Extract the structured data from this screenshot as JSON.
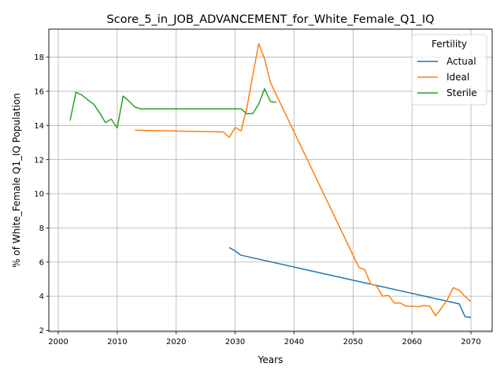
{
  "chart_data": {
    "type": "line",
    "title": "Score_5_in_JOB_ADVANCEMENT_for_White_Female_Q1_IQ",
    "xlabel": "Years",
    "ylabel": "% of White_Female Q1_IQ Population",
    "xlim": [
      1998.4,
      2073.6
    ],
    "ylim": [
      1.93,
      19.64
    ],
    "xticks": [
      2000,
      2010,
      2020,
      2030,
      2040,
      2050,
      2060,
      2070
    ],
    "yticks": [
      2,
      4,
      6,
      8,
      10,
      12,
      14,
      16,
      18
    ],
    "grid": true,
    "legend": {
      "title": "Fertility",
      "placement": "top-right"
    },
    "series": [
      {
        "name": "Actual",
        "color": "#1f77b4",
        "x": [
          2029,
          2030,
          2031,
          2068,
          2069,
          2070
        ],
        "y": [
          6.85,
          6.65,
          6.4,
          3.55,
          2.8,
          2.75
        ]
      },
      {
        "name": "Ideal",
        "color": "#ff7f0e",
        "x": [
          2013,
          2028,
          2029,
          2030,
          2031,
          2032,
          2033,
          2034,
          2035,
          2036,
          2051,
          2052,
          2053,
          2054,
          2055,
          2056,
          2057,
          2058,
          2059,
          2060,
          2061,
          2062,
          2063,
          2064,
          2065,
          2066,
          2067,
          2068,
          2069,
          2070
        ],
        "y": [
          13.72,
          13.62,
          13.3,
          13.88,
          13.68,
          15.05,
          16.95,
          18.8,
          17.9,
          16.5,
          5.68,
          5.55,
          4.72,
          4.6,
          4.0,
          4.05,
          3.6,
          3.6,
          3.42,
          3.42,
          3.38,
          3.45,
          3.42,
          2.85,
          3.3,
          3.8,
          4.5,
          4.35,
          3.98,
          3.68
        ]
      },
      {
        "name": "Sterile",
        "color": "#2ca02c",
        "x": [
          2002,
          2003,
          2004,
          2005,
          2006,
          2007,
          2008,
          2009,
          2010,
          2011,
          2012,
          2013,
          2014,
          2031,
          2032,
          2033,
          2034,
          2035,
          2036,
          2037
        ],
        "y": [
          14.28,
          15.95,
          15.78,
          15.5,
          15.25,
          14.75,
          14.17,
          14.37,
          13.85,
          15.72,
          15.42,
          15.08,
          14.97,
          14.97,
          14.68,
          14.7,
          15.25,
          16.15,
          15.4,
          15.35
        ]
      }
    ]
  }
}
